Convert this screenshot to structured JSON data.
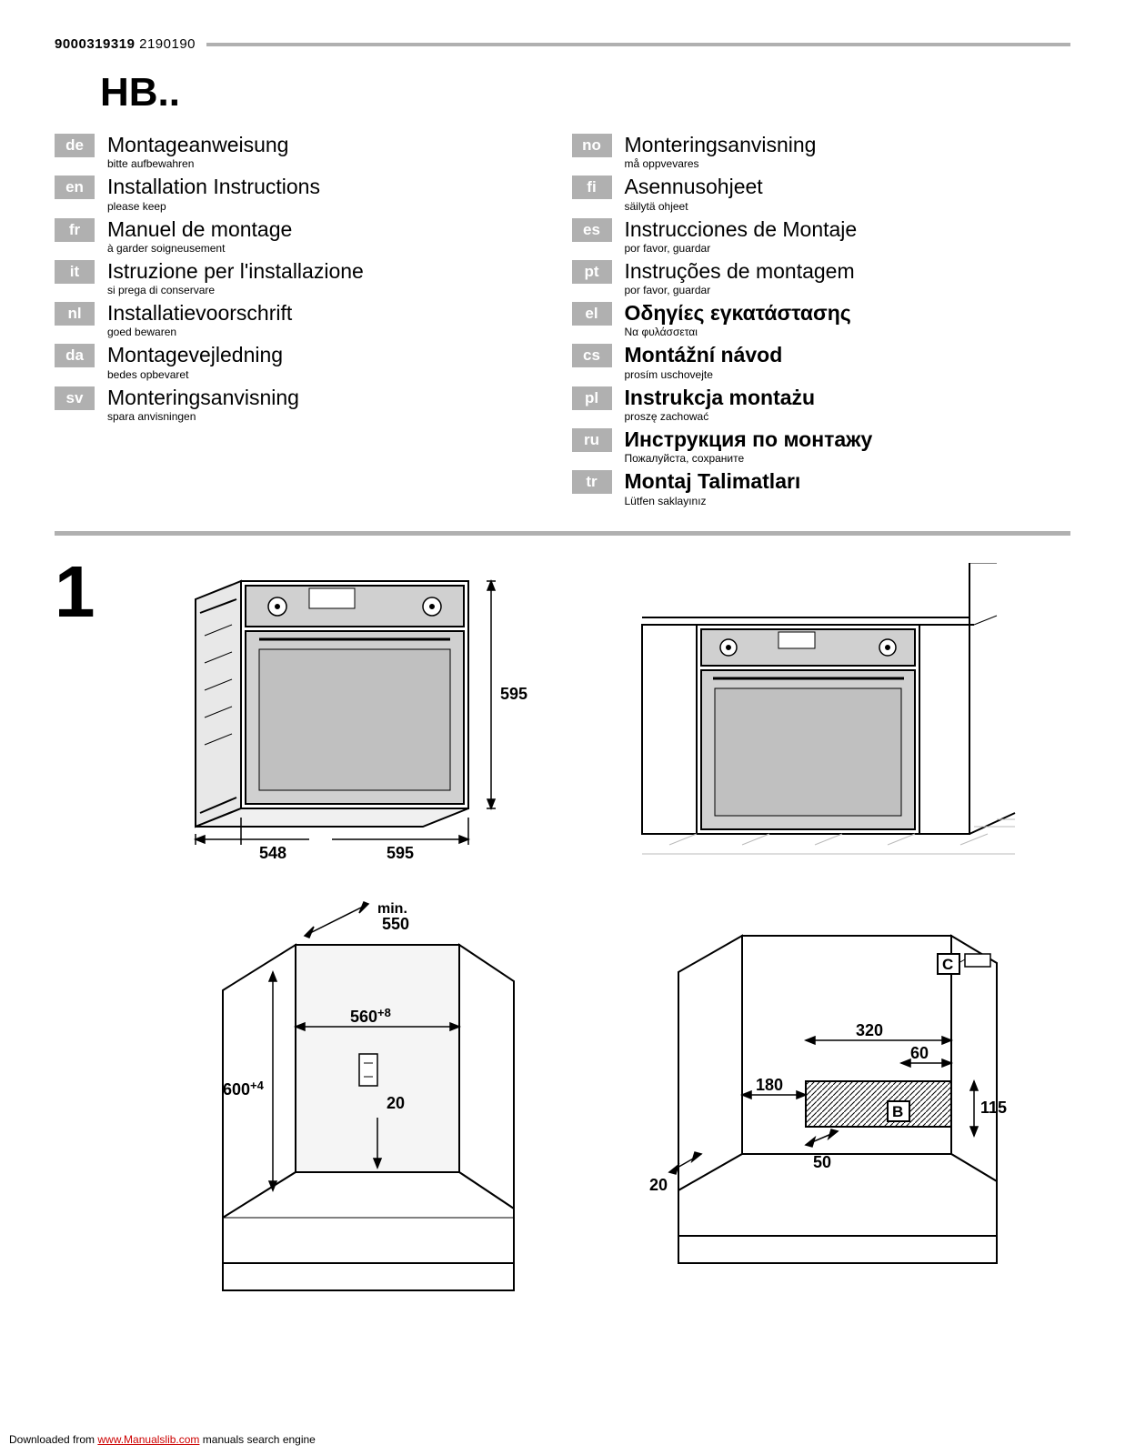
{
  "header": {
    "code_bold": "9000319319",
    "code_light": "2190190"
  },
  "product_code": "HB..",
  "languages_left": [
    {
      "code": "de",
      "title": "Montageanweisung",
      "sub": "bitte aufbewahren"
    },
    {
      "code": "en",
      "title": "Installation Instructions",
      "sub": "please keep"
    },
    {
      "code": "fr",
      "title": "Manuel de montage",
      "sub": "à garder soigneusement"
    },
    {
      "code": "it",
      "title": "Istruzione per l'installazione",
      "sub": "si prega di conservare"
    },
    {
      "code": "nl",
      "title": "Installatievoorschrift",
      "sub": "goed bewaren"
    },
    {
      "code": "da",
      "title": "Montagevejledning",
      "sub": "bedes opbevaret"
    },
    {
      "code": "sv",
      "title": "Monteringsanvisning",
      "sub": "spara anvisningen"
    }
  ],
  "languages_right": [
    {
      "code": "no",
      "title": "Monteringsanvisning",
      "sub": "må oppvevares"
    },
    {
      "code": "fi",
      "title": "Asennusohjeet",
      "sub": "säilytä ohjeet"
    },
    {
      "code": "es",
      "title": "Instrucciones de Montaje",
      "sub": "por favor, guardar"
    },
    {
      "code": "pt",
      "title": "Instruções de montagem",
      "sub": "por favor, guardar"
    },
    {
      "code": "el",
      "title": "Οδηγίες εγκατάστασης",
      "sub": "Να φυλάσσεται"
    },
    {
      "code": "cs",
      "title": "Montážní návod",
      "sub": "prosím uschovejte"
    },
    {
      "code": "pl",
      "title": "Instrukcja montażu",
      "sub": "proszę zachować"
    },
    {
      "code": "ru",
      "title": "Инструкция по монтажу",
      "sub": "Пожалуйста, сохраните"
    },
    {
      "code": "tr",
      "title": "Montaj Talimatları",
      "sub": "Lütfen saklayınız"
    }
  ],
  "bold_languages": [
    "el",
    "cs",
    "pl",
    "ru",
    "tr"
  ],
  "section_number": "1",
  "diagram1": {
    "type": "technical-drawing",
    "description": "oven-front-dimensions",
    "dimensions": {
      "width_bottom_left": "548",
      "width_bottom_right": "595",
      "height_right": "595"
    },
    "colors": {
      "stroke": "#000000",
      "fill_panel": "#d0d0d0",
      "fill_light": "#f0f0f0"
    },
    "label_fontsize": 18,
    "label_fontweight": "bold"
  },
  "diagram2": {
    "type": "technical-drawing",
    "description": "oven-installed-in-cabinet",
    "colors": {
      "stroke": "#000000",
      "fill_panel": "#d0d0d0",
      "tile_stroke": "#bbbbbb"
    }
  },
  "diagram3": {
    "type": "technical-drawing",
    "description": "cabinet-cavity-dimensions",
    "dimensions": {
      "depth_top": "min.\n550",
      "width_inner": "560",
      "width_inner_sup": "+8",
      "height_inner": "600",
      "height_inner_sup": "+4",
      "front_gap": "20"
    },
    "colors": {
      "stroke": "#000000",
      "fill_light": "#e8e8e8"
    },
    "label_fontsize": 18,
    "label_fontweight": "bold"
  },
  "diagram4": {
    "type": "technical-drawing",
    "description": "cabinet-rear-connection-dimensions",
    "dimensions": {
      "width_upper": "320",
      "gap_upper": "60",
      "left_offset": "180",
      "right_height": "115",
      "bottom_depth": "50",
      "front_gap": "20"
    },
    "labels": {
      "b": "B",
      "c": "C"
    },
    "colors": {
      "stroke": "#000000",
      "hatch": "#000000",
      "box_fill": "#ffffff"
    },
    "label_fontsize": 18,
    "label_fontweight": "bold"
  },
  "footer": {
    "prefix": "Downloaded from ",
    "link_text": "www.Manualslib.com",
    "suffix": " manuals search engine"
  }
}
